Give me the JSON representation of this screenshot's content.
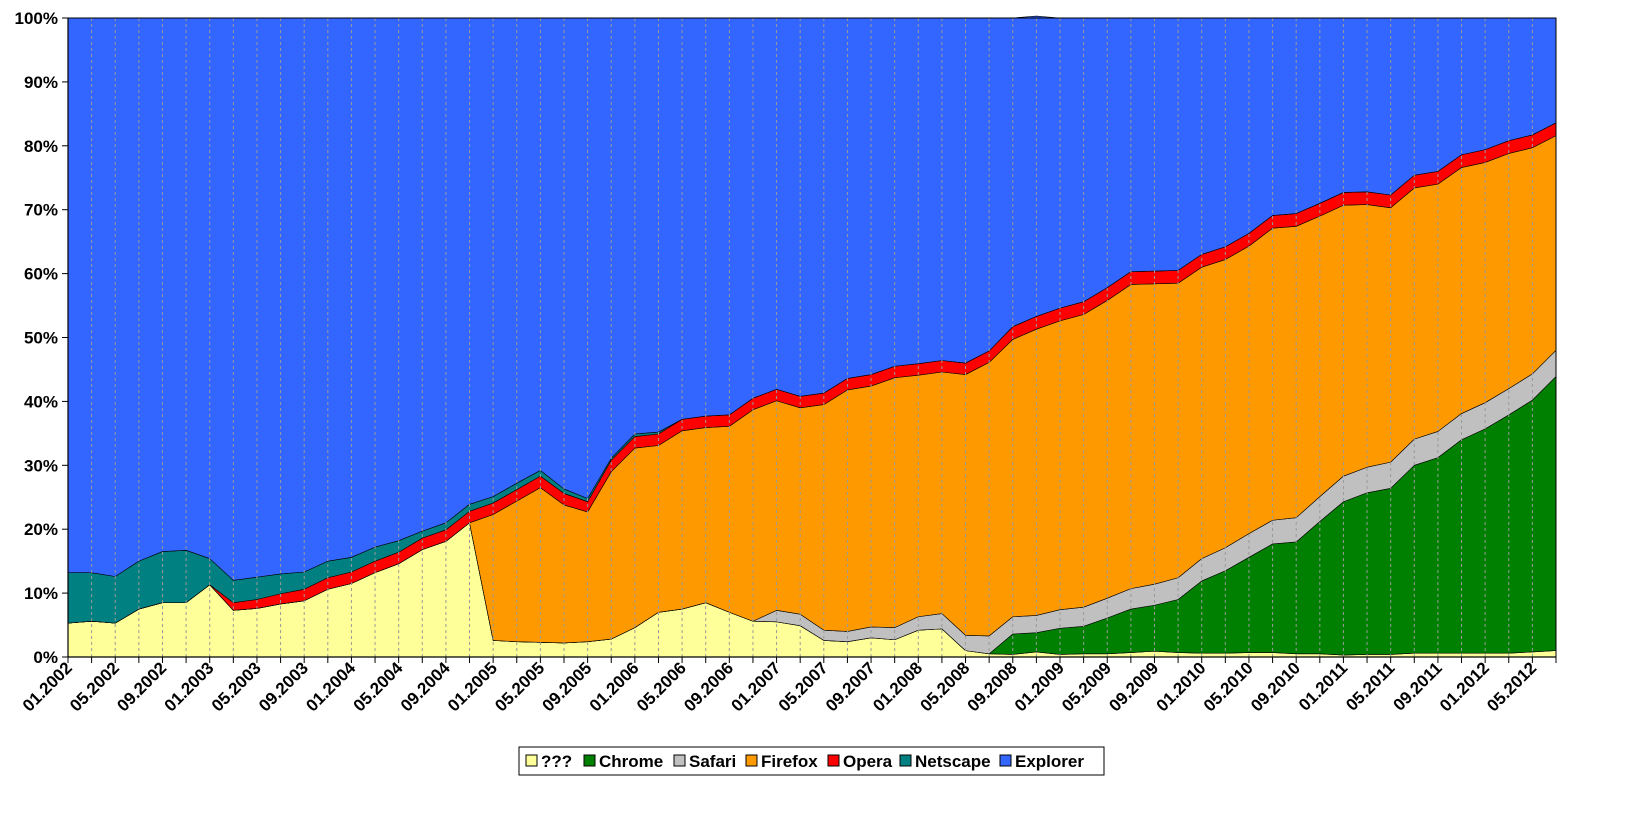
{
  "chart_data": {
    "type": "area",
    "stacked": true,
    "title": "",
    "xlabel": "",
    "ylabel": "",
    "ylim": [
      0,
      100
    ],
    "y_tick_labels": [
      "0%",
      "10%",
      "20%",
      "30%",
      "40%",
      "50%",
      "60%",
      "70%",
      "80%",
      "90%",
      "100%"
    ],
    "x_tick_labels": [
      "01.2002",
      "05.2002",
      "09.2002",
      "01.2003",
      "05.2003",
      "09.2003",
      "01.2004",
      "05.2004",
      "09.2004",
      "01.2005",
      "05.2005",
      "09.2005",
      "01.2006",
      "05.2006",
      "09.2006",
      "01.2007",
      "05.2007",
      "09.2007",
      "01.2008",
      "05.2008",
      "09.2008",
      "01.2009",
      "05.2009",
      "09.2009",
      "01.2010",
      "05.2010",
      "09.2010",
      "01.2011",
      "05.2011",
      "09.2011",
      "01.2012",
      "05.2012"
    ],
    "x_start": "01.2002",
    "x_step_months": 2,
    "grid": "vertical dashed",
    "legend_position": "bottom",
    "series": [
      {
        "name": "???",
        "color": "#ffff99",
        "values": [
          5.3,
          5.6,
          5.3,
          7.5,
          8.5,
          8.5,
          11.3,
          7.3,
          7.6,
          8.3,
          8.8,
          10.6,
          11.5,
          13.2,
          14.6,
          16.8,
          18.1,
          21.0,
          2.6,
          2.4,
          2.3,
          2.2,
          2.4,
          2.8,
          4.6,
          7.0,
          7.5,
          8.5,
          7.0,
          5.6,
          5.5,
          4.9,
          2.6,
          2.4,
          3.0,
          2.7,
          4.2,
          4.4,
          1.0,
          0.5,
          0.4,
          0.8,
          0.4,
          0.5,
          0.5,
          0.7,
          0.9,
          0.7,
          0.6,
          0.6,
          0.7,
          0.7,
          0.5,
          0.5,
          0.3,
          0.4,
          0.4,
          0.6,
          0.6,
          0.6,
          0.6,
          0.6,
          0.8,
          1.0
        ]
      },
      {
        "name": "Chrome",
        "color": "#008000",
        "values": [
          0,
          0,
          0,
          0,
          0,
          0,
          0,
          0,
          0,
          0,
          0,
          0,
          0,
          0,
          0,
          0,
          0,
          0,
          0,
          0,
          0,
          0,
          0,
          0,
          0,
          0,
          0,
          0,
          0,
          0,
          0,
          0,
          0,
          0,
          0,
          0,
          0,
          0,
          0,
          0,
          3.2,
          3.0,
          4.1,
          4.3,
          5.6,
          6.8,
          7.2,
          8.3,
          11.3,
          12.9,
          14.9,
          17.0,
          17.5,
          20.7,
          24.0,
          25.3,
          26.0,
          29.4,
          30.6,
          33.4,
          35.1,
          37.3,
          39.4,
          42.9
        ]
      },
      {
        "name": "Safari",
        "color": "#c0c0c0",
        "values": [
          0,
          0,
          0,
          0,
          0,
          0,
          0,
          0,
          0,
          0,
          0,
          0,
          0,
          0,
          0,
          0,
          0,
          0,
          0,
          0,
          0,
          0,
          0,
          0,
          0,
          0,
          0,
          0,
          0,
          0,
          1.8,
          1.8,
          1.6,
          1.6,
          1.7,
          1.9,
          2.1,
          2.4,
          2.4,
          2.8,
          2.7,
          2.7,
          2.9,
          3.0,
          3.1,
          3.2,
          3.3,
          3.4,
          3.5,
          3.6,
          3.7,
          3.7,
          3.8,
          3.9,
          4.0,
          4.0,
          4.1,
          4.1,
          4.1,
          4.1,
          4.1,
          4.1,
          4.1,
          4.1
        ]
      },
      {
        "name": "Firefox",
        "color": "#ff9900",
        "values": [
          0,
          0,
          0,
          0,
          0,
          0,
          0,
          0,
          0,
          0,
          0,
          0,
          0,
          0,
          0,
          0,
          0,
          0,
          19.7,
          22.0,
          24.2,
          21.6,
          20.3,
          26.2,
          28.1,
          26.1,
          27.9,
          27.4,
          29.1,
          33.1,
          32.8,
          32.3,
          35.3,
          37.8,
          37.7,
          39.1,
          37.8,
          37.8,
          40.8,
          42.8,
          43.4,
          44.8,
          45.2,
          45.8,
          46.6,
          47.6,
          47.0,
          46.1,
          45.6,
          45.1,
          45.0,
          45.7,
          45.6,
          43.9,
          42.4,
          41.1,
          39.8,
          39.3,
          38.7,
          38.5,
          37.6,
          36.8,
          35.4,
          33.6
        ]
      },
      {
        "name": "Opera",
        "color": "#ff0000",
        "values": [
          0,
          0,
          0,
          0,
          0,
          0,
          0,
          1.2,
          1.4,
          1.6,
          1.8,
          1.8,
          1.8,
          1.8,
          1.8,
          1.8,
          1.8,
          1.8,
          1.8,
          1.8,
          1.8,
          1.8,
          1.6,
          1.8,
          1.8,
          1.8,
          1.8,
          1.8,
          1.8,
          1.8,
          1.8,
          1.8,
          1.8,
          1.8,
          1.8,
          1.8,
          1.8,
          1.8,
          1.8,
          1.8,
          2.0,
          2.0,
          2.0,
          2.0,
          2.0,
          2.0,
          2.0,
          2.0,
          2.0,
          2.0,
          2.0,
          2.0,
          2.0,
          2.0,
          2.0,
          2.0,
          2.0,
          2.0,
          2.0,
          2.0,
          2.0,
          2.0,
          2.0,
          2.0
        ]
      },
      {
        "name": "Netscape",
        "color": "#008080",
        "values": [
          7.9,
          7.6,
          7.3,
          7.5,
          8.0,
          8.2,
          4.1,
          3.5,
          3.5,
          3.1,
          2.7,
          2.6,
          2.3,
          2.2,
          1.8,
          1.1,
          1.1,
          1.1,
          1.0,
          1.0,
          0.9,
          0.7,
          0.5,
          0.3,
          0.4,
          0.3,
          0,
          0,
          0,
          0,
          0,
          0,
          0,
          0,
          0,
          0,
          0,
          0,
          0,
          0,
          0,
          0,
          0,
          0,
          0,
          0,
          0,
          0,
          0,
          0,
          0,
          0,
          0,
          0,
          0,
          0,
          0,
          0,
          0,
          0,
          0,
          0,
          0,
          0
        ]
      },
      {
        "name": "Explorer",
        "color": "#3366ff",
        "values": [
          86.8,
          86.8,
          87.4,
          85.0,
          83.5,
          83.3,
          84.6,
          88.0,
          87.5,
          87.0,
          86.7,
          85.0,
          84.4,
          82.8,
          81.8,
          80.3,
          79.0,
          76.1,
          74.9,
          72.8,
          70.8,
          73.7,
          75.2,
          68.9,
          65.1,
          64.8,
          62.8,
          62.3,
          62.1,
          59.5,
          58.1,
          59.2,
          58.7,
          56.4,
          55.8,
          54.5,
          54.1,
          53.6,
          54.0,
          52.1,
          48.3,
          47.0,
          45.4,
          44.4,
          42.2,
          39.7,
          39.6,
          39.5,
          37.0,
          35.8,
          33.7,
          30.9,
          30.6,
          29.0,
          27.3,
          27.2,
          27.7,
          24.6,
          24.0,
          21.4,
          20.6,
          19.2,
          18.3,
          16.4
        ]
      }
    ]
  }
}
